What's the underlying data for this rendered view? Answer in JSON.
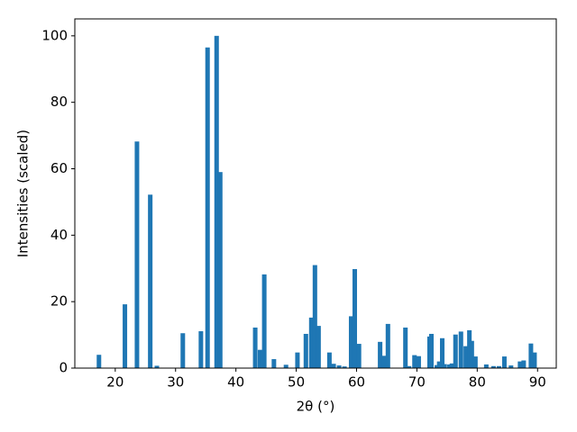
{
  "chart_data": {
    "type": "bar",
    "x_label": "2θ (°)",
    "y_label": "Intensities (scaled)",
    "x": [
      17.3,
      21.6,
      23.6,
      25.8,
      26.9,
      31.2,
      34.2,
      35.3,
      36.8,
      37.4,
      43.2,
      44.0,
      44.7,
      46.3,
      48.3,
      50.2,
      51.6,
      52.5,
      53.1,
      53.7,
      55.5,
      56.2,
      57.1,
      58.0,
      59.1,
      59.7,
      60.4,
      63.9,
      64.6,
      65.2,
      68.1,
      68.7,
      69.6,
      70.3,
      72.1,
      72.4,
      73.3,
      73.7,
      74.2,
      74.6,
      75.4,
      75.8,
      76.4,
      77.3,
      78.1,
      78.7,
      79.1,
      79.7,
      81.5,
      82.7,
      83.6,
      84.5,
      85.6,
      87.1,
      87.7,
      88.9,
      89.5
    ],
    "values": [
      4,
      19.2,
      68.2,
      52.2,
      0.7,
      10.5,
      11.1,
      96.5,
      100,
      59,
      12.2,
      5.5,
      28.2,
      2.7,
      1.0,
      4.7,
      10.3,
      15.2,
      31,
      12.7,
      4.7,
      1.3,
      0.8,
      0.5,
      15.6,
      29.8,
      7.3,
      7.9,
      3.7,
      13.3,
      12.2,
      0.6,
      3.9,
      3.6,
      9.5,
      10.3,
      0.9,
      2,
      9,
      1.2,
      1.1,
      1.4,
      10.1,
      11,
      6.6,
      11.4,
      8.2,
      3.5,
      1.1,
      0.6,
      0.6,
      3.5,
      0.8,
      2,
      2.3,
      7.4,
      4.7
    ],
    "color": "#1f77b4",
    "xlim": [
      13.3,
      93.1
    ],
    "xticks": [
      20,
      30,
      40,
      50,
      60,
      70,
      80,
      90
    ],
    "ylim": [
      0,
      105.1
    ],
    "yticks": [
      0,
      20,
      40,
      60,
      80,
      100
    ],
    "grid": false
  }
}
